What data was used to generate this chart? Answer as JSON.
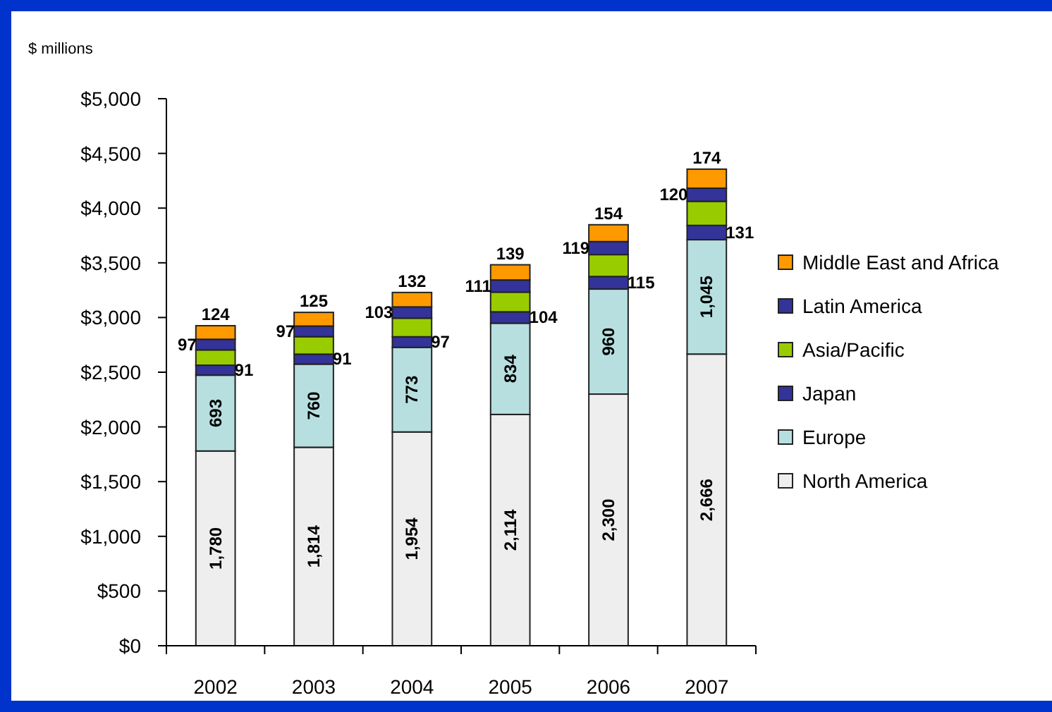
{
  "chart_data": {
    "type": "bar",
    "stacked": true,
    "ylabel": "$ millions",
    "categories": [
      "2002",
      "2003",
      "2004",
      "2005",
      "2006",
      "2007"
    ],
    "series": [
      {
        "name": "North America",
        "color": "#eeeeee",
        "values": [
          1780,
          1814,
          1954,
          2114,
          2300,
          2666
        ],
        "value_labels": [
          "1,780",
          "1,814",
          "1,954",
          "2,114",
          "2,300",
          "2,666"
        ]
      },
      {
        "name": "Europe",
        "color": "#b7dfe0",
        "values": [
          693,
          760,
          773,
          834,
          960,
          1045
        ],
        "value_labels": [
          "693",
          "760",
          "773",
          "834",
          "960",
          "1,045"
        ]
      },
      {
        "name": "Japan",
        "color": "#333399",
        "values": [
          91,
          91,
          97,
          104,
          115,
          131
        ],
        "value_labels": [
          "91",
          "91",
          "97",
          "104",
          "115",
          "131"
        ]
      },
      {
        "name": "Asia/Pacific",
        "color": "#99cc00",
        "values": [
          140,
          160,
          170,
          180,
          200,
          220
        ]
      },
      {
        "name": "Latin America",
        "color": "#333399",
        "values": [
          97,
          97,
          103,
          111,
          119,
          120
        ],
        "value_labels": [
          "97",
          "97",
          "103",
          "111",
          "119",
          "120"
        ]
      },
      {
        "name": "Middle East and Africa",
        "color": "#ff9900",
        "values": [
          124,
          125,
          132,
          139,
          154,
          174
        ],
        "value_labels": [
          "124",
          "125",
          "132",
          "139",
          "154",
          "174"
        ]
      }
    ],
    "ylim": [
      0,
      5000
    ],
    "yticks": [
      {
        "value": 0,
        "label": "$0"
      },
      {
        "value": 500,
        "label": "$500"
      },
      {
        "value": 1000,
        "label": "$1,000"
      },
      {
        "value": 1500,
        "label": "$1,500"
      },
      {
        "value": 2000,
        "label": "$2,000"
      },
      {
        "value": 2500,
        "label": "$2,500"
      },
      {
        "value": 3000,
        "label": "$3,000"
      },
      {
        "value": 3500,
        "label": "$3,500"
      },
      {
        "value": 4000,
        "label": "$4,000"
      },
      {
        "value": 4500,
        "label": "$4,500"
      },
      {
        "value": 5000,
        "label": "$5,000"
      }
    ],
    "legend": "right"
  }
}
